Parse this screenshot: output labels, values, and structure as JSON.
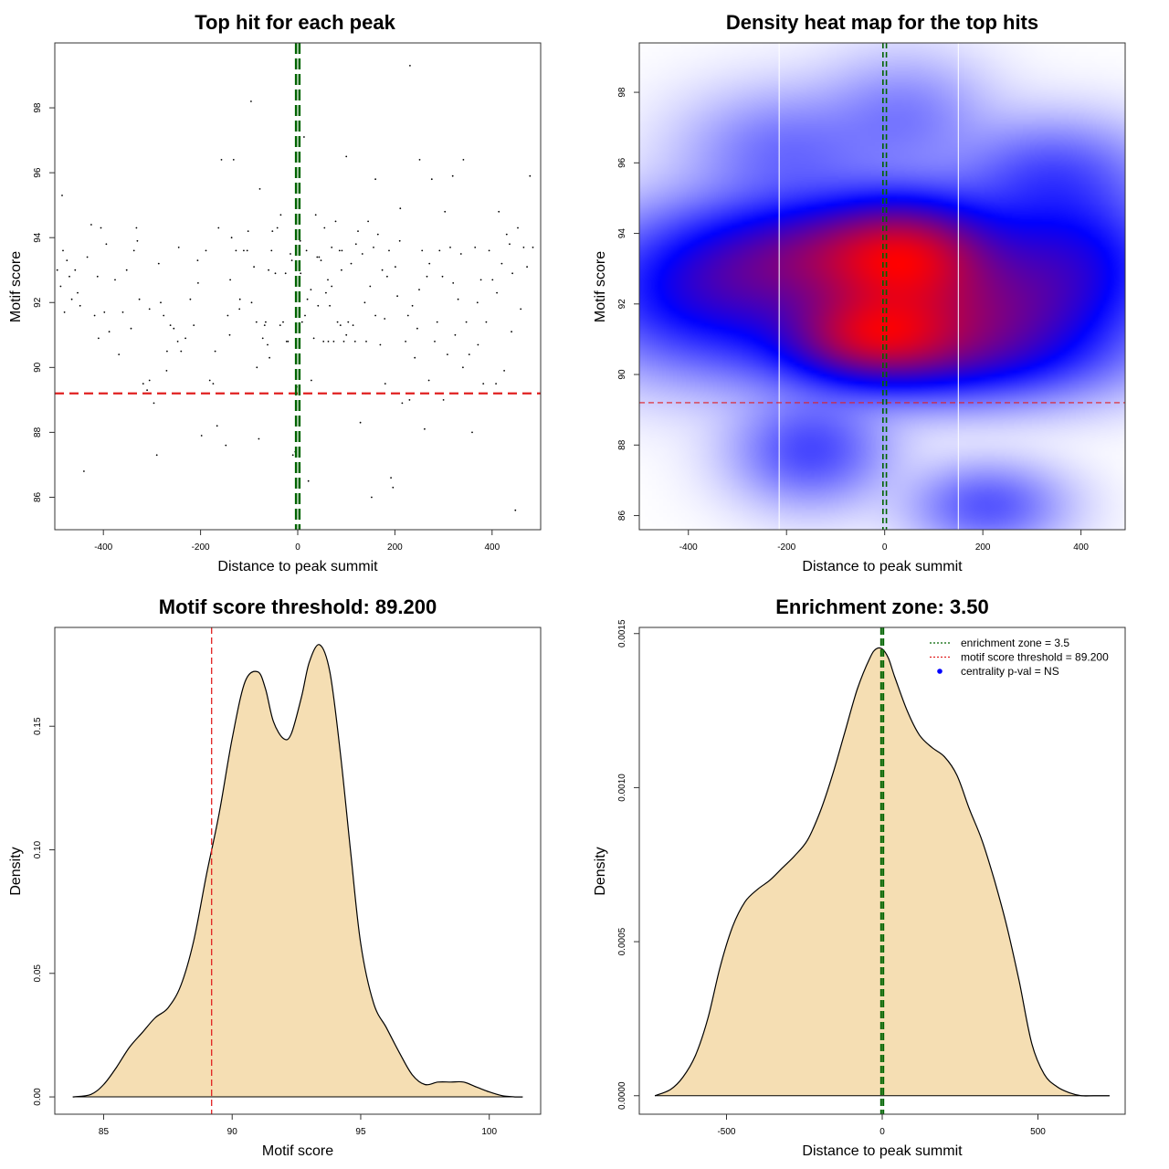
{
  "colors": {
    "threshold": "#e02020",
    "zone": "#006400",
    "fill": "#f5deb3",
    "density_low": "#ffffff",
    "density_mid": "#0000ff",
    "density_high": "#ff0000",
    "legend_marker": "#0000ff"
  },
  "chart_data": [
    {
      "id": "scatter",
      "type": "scatter",
      "title": "Top hit for each peak",
      "xlabel": "Distance to peak summit",
      "ylabel": "Motif score",
      "xlim": [
        -500,
        500
      ],
      "ylim": [
        85,
        100
      ],
      "xticks": [
        "-400",
        "-200",
        "0",
        "200",
        "400"
      ],
      "yticks": [
        "86",
        "88",
        "90",
        "92",
        "94",
        "96",
        "98"
      ],
      "threshold_y": 89.2,
      "zone_x": [
        -3.5,
        3.5
      ],
      "points": [
        [
          -495,
          93.0
        ],
        [
          -488,
          92.5
        ],
        [
          -485,
          95.3
        ],
        [
          -483,
          93.6
        ],
        [
          -480,
          91.7
        ],
        [
          -475,
          93.3
        ],
        [
          -465,
          92.1
        ],
        [
          -458,
          93.0
        ],
        [
          -453,
          92.3
        ],
        [
          -448,
          91.9
        ],
        [
          -440,
          86.8
        ],
        [
          -433,
          93.4
        ],
        [
          -425,
          94.4
        ],
        [
          -418,
          91.6
        ],
        [
          -412,
          92.8
        ],
        [
          -405,
          94.3
        ],
        [
          -398,
          91.7
        ],
        [
          -394,
          93.8
        ],
        [
          -388,
          91.1
        ],
        [
          -376,
          92.7
        ],
        [
          -368,
          90.4
        ],
        [
          -352,
          93.0
        ],
        [
          -343,
          91.2
        ],
        [
          -337,
          93.6
        ],
        [
          -332,
          94.3
        ],
        [
          -326,
          92.1
        ],
        [
          -318,
          89.5
        ],
        [
          -310,
          89.3
        ],
        [
          -305,
          91.8
        ],
        [
          -296,
          88.9
        ],
        [
          -290,
          87.3
        ],
        [
          -286,
          93.2
        ],
        [
          -282,
          92.0
        ],
        [
          -276,
          91.6
        ],
        [
          -269,
          90.5
        ],
        [
          -262,
          91.3
        ],
        [
          -255,
          91.2
        ],
        [
          -247,
          90.8
        ],
        [
          -240,
          90.5
        ],
        [
          -231,
          90.9
        ],
        [
          -221,
          92.1
        ],
        [
          -214,
          91.3
        ],
        [
          -206,
          93.3
        ],
        [
          -198,
          87.9
        ],
        [
          -189,
          93.6
        ],
        [
          -181,
          89.6
        ],
        [
          -174,
          89.5
        ],
        [
          -166,
          88.2
        ],
        [
          -163,
          94.3
        ],
        [
          -157,
          96.4
        ],
        [
          -148,
          87.6
        ],
        [
          -144,
          91.6
        ],
        [
          -139,
          92.7
        ],
        [
          -132,
          96.4
        ],
        [
          -127,
          93.6
        ],
        [
          -119,
          92.1
        ],
        [
          -111,
          93.6
        ],
        [
          -104,
          93.6
        ],
        [
          -96,
          98.2
        ],
        [
          -90,
          93.1
        ],
        [
          -85,
          91.4
        ],
        [
          -80,
          87.8
        ],
        [
          -78,
          95.5
        ],
        [
          -72,
          90.9
        ],
        [
          -66,
          91.4
        ],
        [
          -62,
          90.7
        ],
        [
          -54,
          93.6
        ],
        [
          -52,
          94.2
        ],
        [
          -46,
          92.9
        ],
        [
          -42,
          94.3
        ],
        [
          -36,
          91.3
        ],
        [
          -30,
          91.4
        ],
        [
          -25,
          92.9
        ],
        [
          -20,
          90.8
        ],
        [
          -15,
          93.5
        ],
        [
          -10,
          87.3
        ],
        [
          -5,
          87.4
        ],
        [
          -2,
          89.4
        ],
        [
          6,
          92.9
        ],
        [
          9,
          91.4
        ],
        [
          13,
          97.1
        ],
        [
          18,
          93.6
        ],
        [
          22,
          86.5
        ],
        [
          27,
          92.4
        ],
        [
          33,
          90.9
        ],
        [
          37,
          94.7
        ],
        [
          42,
          91.9
        ],
        [
          48,
          93.3
        ],
        [
          53,
          90.8
        ],
        [
          55,
          94.3
        ],
        [
          58,
          92.3
        ],
        [
          63,
          90.8
        ],
        [
          66,
          91.9
        ],
        [
          70,
          93.7
        ],
        [
          74,
          90.8
        ],
        [
          78,
          94.5
        ],
        [
          82,
          91.4
        ],
        [
          86,
          93.6
        ],
        [
          91,
          93.6
        ],
        [
          95,
          90.8
        ],
        [
          100,
          96.5
        ],
        [
          104,
          91.4
        ],
        [
          110,
          93.2
        ],
        [
          114,
          91.3
        ],
        [
          118,
          90.8
        ],
        [
          124,
          94.2
        ],
        [
          129,
          88.3
        ],
        [
          133,
          93.5
        ],
        [
          138,
          92.0
        ],
        [
          141,
          90.8
        ],
        [
          145,
          94.5
        ],
        [
          149,
          92.5
        ],
        [
          152,
          86.0
        ],
        [
          156,
          93.7
        ],
        [
          160,
          95.8
        ],
        [
          165,
          94.1
        ],
        [
          170,
          90.7
        ],
        [
          174,
          93.0
        ],
        [
          179,
          91.5
        ],
        [
          184,
          92.8
        ],
        [
          188,
          93.6
        ],
        [
          192,
          86.6
        ],
        [
          196,
          86.3
        ],
        [
          201,
          93.1
        ],
        [
          205,
          92.2
        ],
        [
          211,
          94.9
        ],
        [
          215,
          88.9
        ],
        [
          222,
          90.8
        ],
        [
          227,
          91.6
        ],
        [
          231,
          99.3
        ],
        [
          236,
          91.9
        ],
        [
          241,
          90.3
        ],
        [
          246,
          91.2
        ],
        [
          251,
          96.4
        ],
        [
          256,
          93.6
        ],
        [
          261,
          88.1
        ],
        [
          266,
          92.8
        ],
        [
          271,
          93.2
        ],
        [
          276,
          95.8
        ],
        [
          282,
          90.8
        ],
        [
          287,
          91.4
        ],
        [
          292,
          93.6
        ],
        [
          298,
          92.8
        ],
        [
          303,
          94.8
        ],
        [
          308,
          90.4
        ],
        [
          314,
          93.7
        ],
        [
          319,
          95.9
        ],
        [
          324,
          91.0
        ],
        [
          330,
          92.1
        ],
        [
          336,
          93.5
        ],
        [
          341,
          96.4
        ],
        [
          347,
          91.4
        ],
        [
          353,
          90.4
        ],
        [
          359,
          88.0
        ],
        [
          365,
          93.7
        ],
        [
          371,
          90.7
        ],
        [
          377,
          92.7
        ],
        [
          382,
          89.5
        ],
        [
          388,
          91.4
        ],
        [
          394,
          93.6
        ],
        [
          401,
          92.7
        ],
        [
          408,
          89.5
        ],
        [
          414,
          94.8
        ],
        [
          420,
          93.2
        ],
        [
          425,
          89.9
        ],
        [
          430,
          94.1
        ],
        [
          436,
          93.8
        ],
        [
          442,
          92.9
        ],
        [
          448,
          85.6
        ],
        [
          453,
          94.3
        ],
        [
          459,
          91.8
        ],
        [
          465,
          93.7
        ],
        [
          472,
          93.1
        ],
        [
          478,
          95.9
        ],
        [
          484,
          93.7
        ],
        [
          -23,
          90.8
        ],
        [
          -12,
          93.3
        ],
        [
          15,
          91.6
        ],
        [
          28,
          89.6
        ],
        [
          44,
          93.4
        ],
        [
          62,
          92.7
        ],
        [
          88,
          91.3
        ],
        [
          -68,
          91.3
        ],
        [
          -58,
          90.3
        ],
        [
          -84,
          90.0
        ],
        [
          -102,
          94.2
        ],
        [
          -136,
          94.0
        ],
        [
          -170,
          90.5
        ],
        [
          -205,
          92.6
        ],
        [
          -245,
          93.7
        ],
        [
          -270,
          89.9
        ],
        [
          -305,
          89.6
        ],
        [
          -330,
          93.9
        ],
        [
          -360,
          91.7
        ],
        [
          -410,
          90.9
        ],
        [
          -470,
          92.8
        ],
        [
          300,
          89.0
        ],
        [
          340,
          90.0
        ],
        [
          270,
          89.6
        ],
        [
          230,
          89.0
        ],
        [
          180,
          89.5
        ],
        [
          140,
          89.2
        ],
        [
          120,
          93.8
        ],
        [
          100,
          91.0
        ],
        [
          -140,
          91.0
        ],
        [
          -120,
          91.8
        ],
        [
          -95,
          92.0
        ],
        [
          -60,
          93.0
        ],
        [
          -35,
          94.7
        ],
        [
          5,
          93.9
        ],
        [
          20,
          92.1
        ],
        [
          40,
          93.4
        ],
        [
          70,
          92.5
        ],
        [
          90,
          93.0
        ],
        [
          160,
          91.6
        ],
        [
          210,
          93.9
        ],
        [
          250,
          92.4
        ],
        [
          320,
          92.6
        ],
        [
          370,
          92.0
        ],
        [
          410,
          92.3
        ],
        [
          440,
          91.1
        ]
      ]
    },
    {
      "id": "heatmap",
      "type": "heatmap",
      "title": "Density heat map for the top hits",
      "xlabel": "Distance to peak summit",
      "ylabel": "Motif score",
      "xlim": [
        -500,
        490
      ],
      "ylim": [
        85.6,
        99.4
      ],
      "xticks": [
        "-400",
        "-200",
        "0",
        "200",
        "400"
      ],
      "yticks": [
        "86",
        "88",
        "90",
        "92",
        "94",
        "96",
        "98"
      ],
      "threshold_y": 89.2,
      "zone_x": [
        -3.5,
        3.5
      ],
      "vlines": [
        -215,
        150
      ],
      "blobs": [
        {
          "x": 50,
          "y": 93.3,
          "sx": 115,
          "sy": 1.05,
          "w": 1.45
        },
        {
          "x": -25,
          "y": 91.1,
          "sx": 110,
          "sy": 0.8,
          "w": 1.3
        },
        {
          "x": -120,
          "y": 93.4,
          "sx": 170,
          "sy": 1.0,
          "w": 0.85
        },
        {
          "x": 200,
          "y": 91.6,
          "sx": 160,
          "sy": 1.0,
          "w": 0.8
        },
        {
          "x": -330,
          "y": 92.3,
          "sx": 170,
          "sy": 1.3,
          "w": 0.75
        },
        {
          "x": 370,
          "y": 93.2,
          "sx": 130,
          "sy": 1.3,
          "w": 0.7
        },
        {
          "x": 120,
          "y": 90.4,
          "sx": 200,
          "sy": 0.8,
          "w": 0.55
        },
        {
          "x": -150,
          "y": 87.8,
          "sx": 90,
          "sy": 0.9,
          "w": 0.35
        },
        {
          "x": 210,
          "y": 86.2,
          "sx": 90,
          "sy": 0.7,
          "w": 0.3
        },
        {
          "x": 340,
          "y": 95.7,
          "sx": 120,
          "sy": 0.9,
          "w": 0.28
        },
        {
          "x": -200,
          "y": 96.3,
          "sx": 120,
          "sy": 1.0,
          "w": 0.22
        },
        {
          "x": 40,
          "y": 97.3,
          "sx": 100,
          "sy": 1.0,
          "w": 0.18
        }
      ]
    },
    {
      "id": "score-density",
      "type": "area",
      "title": "Motif score threshold: 89.200",
      "xlabel": "Motif score",
      "ylabel": "Density",
      "xlim": [
        83.1,
        102
      ],
      "ylim": [
        -0.007,
        0.19
      ],
      "xticks": [
        "85",
        "90",
        "95",
        "100"
      ],
      "yticks": [
        "0.00",
        "0.05",
        "0.10",
        "0.15"
      ],
      "threshold_x": 89.2,
      "x": [
        83.8,
        84.5,
        85,
        85.5,
        86,
        86.5,
        87,
        87.5,
        88,
        88.5,
        89,
        89.5,
        90,
        90.5,
        91,
        91.3,
        91.6,
        92,
        92.3,
        92.7,
        93,
        93.4,
        93.8,
        94.2,
        94.6,
        95,
        95.5,
        96,
        96.5,
        97,
        97.5,
        98,
        98.5,
        99,
        99.5,
        100,
        100.5,
        101,
        101.3
      ],
      "y": [
        0.0,
        0.001,
        0.005,
        0.012,
        0.02,
        0.026,
        0.032,
        0.036,
        0.045,
        0.063,
        0.09,
        0.115,
        0.145,
        0.168,
        0.172,
        0.165,
        0.152,
        0.145,
        0.147,
        0.162,
        0.176,
        0.183,
        0.172,
        0.14,
        0.1,
        0.062,
        0.038,
        0.028,
        0.018,
        0.009,
        0.005,
        0.006,
        0.006,
        0.006,
        0.004,
        0.002,
        0.0005,
        0.0,
        0.0
      ]
    },
    {
      "id": "distance-density",
      "type": "area",
      "title": "Enrichment zone: 3.50",
      "xlabel": "Distance to peak summit",
      "ylabel": "Density",
      "xlim": [
        -780,
        780
      ],
      "ylim": [
        -6e-05,
        0.00152
      ],
      "xticks": [
        "-500",
        "0",
        "500"
      ],
      "yticks": [
        "0.0000",
        "0.0005",
        "0.0010",
        "0.0015"
      ],
      "zone_x": [
        -3.5,
        3.5
      ],
      "x": [
        -730,
        -680,
        -640,
        -600,
        -560,
        -520,
        -480,
        -440,
        -400,
        -360,
        -320,
        -280,
        -240,
        -200,
        -160,
        -120,
        -80,
        -40,
        -20,
        0,
        20,
        40,
        80,
        120,
        160,
        200,
        240,
        280,
        320,
        360,
        400,
        440,
        480,
        520,
        560,
        600,
        640,
        680,
        730
      ],
      "y": [
        0.0,
        2e-05,
        6e-05,
        0.00013,
        0.00025,
        0.00042,
        0.00055,
        0.00063,
        0.00067,
        0.0007,
        0.00074,
        0.00078,
        0.00083,
        0.00092,
        0.00104,
        0.00118,
        0.00132,
        0.00142,
        0.00145,
        0.00145,
        0.00142,
        0.00136,
        0.00125,
        0.00117,
        0.00113,
        0.0011,
        0.00104,
        0.00093,
        0.00083,
        0.0007,
        0.00055,
        0.00037,
        0.00017,
        7e-05,
        3e-05,
        1e-05,
        0.0,
        0.0,
        0.0
      ],
      "legend": [
        {
          "label": "enrichment zone = 3.5",
          "style": "dotted",
          "color_key": "zone"
        },
        {
          "label": "motif score threshold = 89.200",
          "style": "dotted",
          "color_key": "threshold"
        },
        {
          "label": "centrality p-val = NS",
          "style": "dot",
          "color_key": "legend_marker"
        }
      ]
    }
  ]
}
